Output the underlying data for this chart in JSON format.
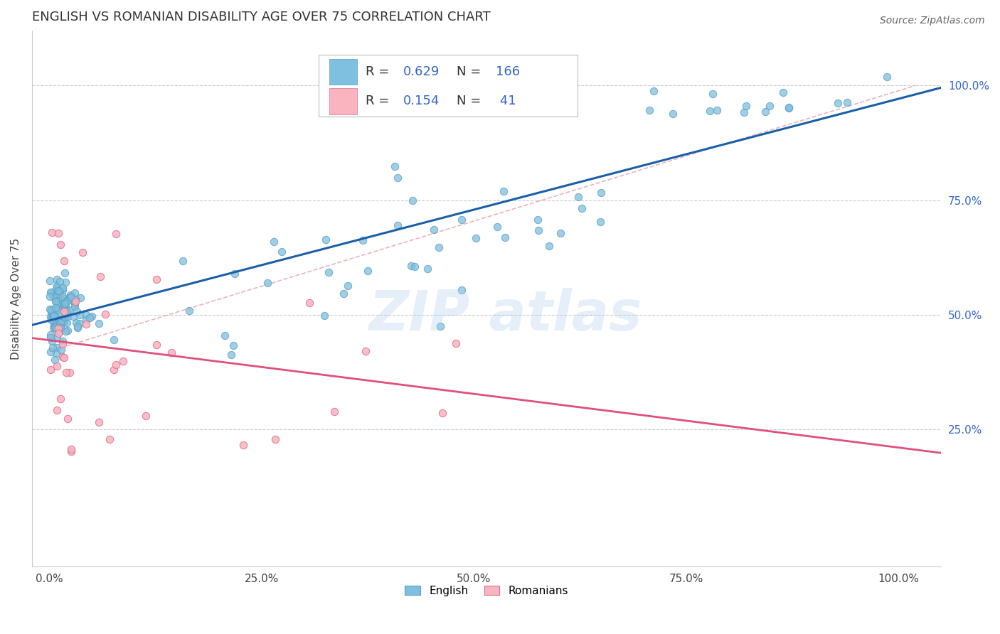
{
  "title": "ENGLISH VS ROMANIAN DISABILITY AGE OVER 75 CORRELATION CHART",
  "source": "Source: ZipAtlas.com",
  "ylabel": "Disability Age Over 75",
  "xtick_labels": [
    "0.0%",
    "25.0%",
    "50.0%",
    "75.0%",
    "100.0%"
  ],
  "ytick_labels": [
    "25.0%",
    "50.0%",
    "75.0%",
    "100.0%"
  ],
  "xtick_vals": [
    0.0,
    0.25,
    0.5,
    0.75,
    1.0
  ],
  "ytick_vals": [
    0.25,
    0.5,
    0.75,
    1.0
  ],
  "english_color": "#7fbfdf",
  "english_edge_color": "#5a9fc0",
  "romanian_color": "#f9b4c0",
  "romanian_edge_color": "#e07090",
  "english_line_color": "#1a5fa8",
  "romanian_line_color": "#e0507a",
  "ref_line_color": "#e08090",
  "right_tick_color": "#3366cc",
  "english_R": 0.629,
  "english_N": 166,
  "romanian_R": 0.154,
  "romanian_N": 41,
  "legend_label_english": "English",
  "legend_label_romanian": "Romanians",
  "title_fontsize": 13,
  "axis_label_fontsize": 11,
  "tick_fontsize": 11,
  "source_fontsize": 10,
  "legend_fontsize": 13,
  "watermark_text": "ZIP atlas",
  "xlim": [
    -0.02,
    1.05
  ],
  "ylim": [
    -0.05,
    1.12
  ]
}
